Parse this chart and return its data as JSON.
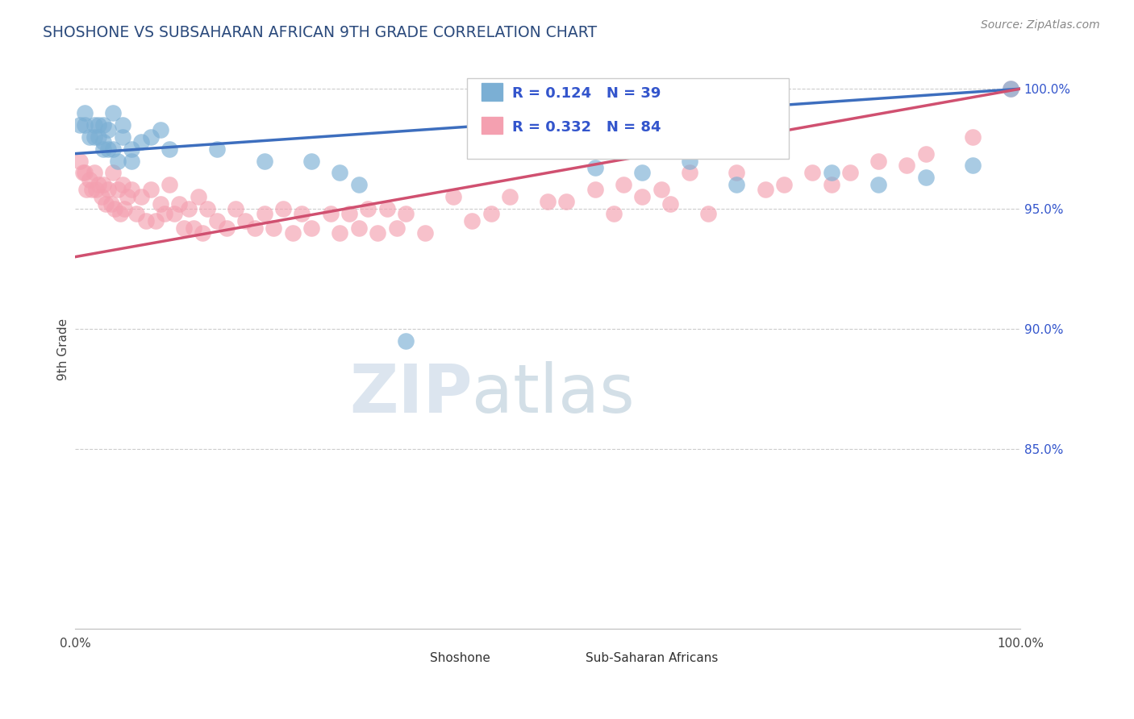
{
  "title": "SHOSHONE VS SUBSAHARAN AFRICAN 9TH GRADE CORRELATION CHART",
  "source_text": "Source: ZipAtlas.com",
  "ylabel": "9th Grade",
  "xlim": [
    0.0,
    1.0
  ],
  "ylim": [
    0.775,
    1.008
  ],
  "yticks_right": [
    1.0,
    0.95,
    0.9,
    0.85
  ],
  "ytick_labels_right": [
    "100.0%",
    "95.0%",
    "90.0%",
    "85.0%"
  ],
  "shoshone_color": "#7BAFD4",
  "subsaharan_color": "#F4A0B0",
  "shoshone_line_color": "#3D6EBE",
  "subsaharan_line_color": "#D05070",
  "legend_R1": "R = 0.124",
  "legend_N1": "N = 39",
  "legend_R2": "R = 0.332",
  "legend_N2": "N = 84",
  "shoshone_x": [
    0.005,
    0.01,
    0.01,
    0.015,
    0.02,
    0.02,
    0.025,
    0.025,
    0.03,
    0.03,
    0.03,
    0.035,
    0.035,
    0.04,
    0.04,
    0.045,
    0.05,
    0.05,
    0.06,
    0.06,
    0.07,
    0.08,
    0.09,
    0.1,
    0.15,
    0.2,
    0.25,
    0.28,
    0.3,
    0.35,
    0.55,
    0.6,
    0.65,
    0.7,
    0.8,
    0.85,
    0.9,
    0.95,
    0.99
  ],
  "shoshone_y": [
    0.985,
    0.99,
    0.985,
    0.98,
    0.985,
    0.98,
    0.985,
    0.98,
    0.985,
    0.978,
    0.975,
    0.983,
    0.975,
    0.99,
    0.975,
    0.97,
    0.985,
    0.98,
    0.975,
    0.97,
    0.978,
    0.98,
    0.983,
    0.975,
    0.975,
    0.97,
    0.97,
    0.965,
    0.96,
    0.895,
    0.967,
    0.965,
    0.97,
    0.96,
    0.965,
    0.96,
    0.963,
    0.968,
    1.0
  ],
  "subsaharan_x": [
    0.005,
    0.008,
    0.01,
    0.012,
    0.015,
    0.018,
    0.02,
    0.022,
    0.025,
    0.028,
    0.03,
    0.032,
    0.035,
    0.038,
    0.04,
    0.042,
    0.045,
    0.048,
    0.05,
    0.052,
    0.055,
    0.06,
    0.065,
    0.07,
    0.075,
    0.08,
    0.085,
    0.09,
    0.095,
    0.1,
    0.105,
    0.11,
    0.115,
    0.12,
    0.125,
    0.13,
    0.135,
    0.14,
    0.15,
    0.16,
    0.17,
    0.18,
    0.19,
    0.2,
    0.21,
    0.22,
    0.23,
    0.24,
    0.25,
    0.27,
    0.28,
    0.29,
    0.3,
    0.31,
    0.32,
    0.33,
    0.34,
    0.35,
    0.37,
    0.4,
    0.42,
    0.44,
    0.46,
    0.5,
    0.52,
    0.55,
    0.57,
    0.58,
    0.6,
    0.62,
    0.63,
    0.65,
    0.67,
    0.7,
    0.73,
    0.75,
    0.78,
    0.8,
    0.82,
    0.85,
    0.88,
    0.9,
    0.95,
    0.99
  ],
  "subsaharan_y": [
    0.97,
    0.965,
    0.965,
    0.958,
    0.962,
    0.958,
    0.965,
    0.958,
    0.96,
    0.955,
    0.96,
    0.952,
    0.958,
    0.952,
    0.965,
    0.95,
    0.958,
    0.948,
    0.96,
    0.95,
    0.955,
    0.958,
    0.948,
    0.955,
    0.945,
    0.958,
    0.945,
    0.952,
    0.948,
    0.96,
    0.948,
    0.952,
    0.942,
    0.95,
    0.942,
    0.955,
    0.94,
    0.95,
    0.945,
    0.942,
    0.95,
    0.945,
    0.942,
    0.948,
    0.942,
    0.95,
    0.94,
    0.948,
    0.942,
    0.948,
    0.94,
    0.948,
    0.942,
    0.95,
    0.94,
    0.95,
    0.942,
    0.948,
    0.94,
    0.955,
    0.945,
    0.948,
    0.955,
    0.953,
    0.953,
    0.958,
    0.948,
    0.96,
    0.955,
    0.958,
    0.952,
    0.965,
    0.948,
    0.965,
    0.958,
    0.96,
    0.965,
    0.96,
    0.965,
    0.97,
    0.968,
    0.973,
    0.98,
    1.0
  ],
  "watermark_zip": "ZIP",
  "watermark_atlas": "atlas",
  "watermark_color_zip": "#C8D8E8",
  "watermark_color_atlas": "#B0C8D8",
  "background_color": "#FFFFFF",
  "grid_color": "#CCCCCC",
  "title_color": "#2B4A7C",
  "legend_box_edge": "#CCCCCC"
}
